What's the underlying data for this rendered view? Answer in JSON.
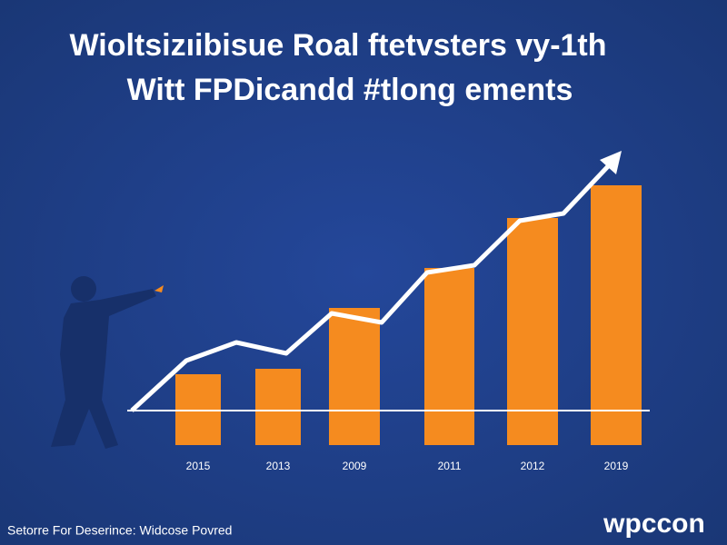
{
  "chart_data": {
    "type": "bar",
    "title": "Wioltsizıibisue Roal ftetvsters vy-1th",
    "subtitle": "Witt FPDicandd #tlong ements",
    "categories": [
      "2015",
      "2013",
      "2009",
      "2011",
      "2012",
      "2019"
    ],
    "values": [
      78,
      84,
      151,
      195,
      250,
      286
    ],
    "color": "#f58b1f",
    "footer": "Setorre For Deserince: Widcose Povred",
    "brand": "wpccon"
  }
}
